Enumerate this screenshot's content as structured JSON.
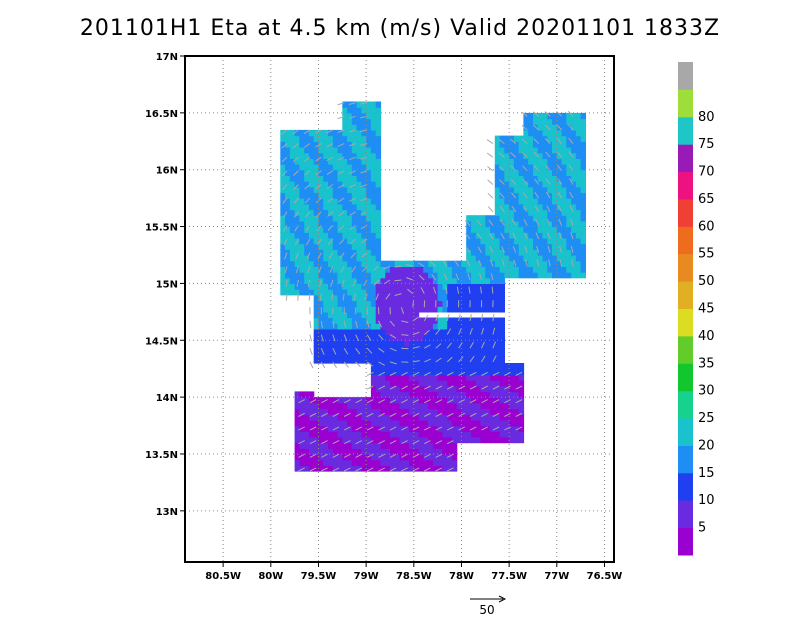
{
  "chart_data": {
    "type": "heatmap",
    "title": "201101H1 Eta at 4.5 km (m/s) Valid 20201101 1833Z",
    "x_ticks": [
      "80.5W",
      "80W",
      "79.5W",
      "79W",
      "78.5W",
      "78W",
      "77.5W",
      "77W",
      "76.5W"
    ],
    "y_ticks": [
      "13N",
      "13.5N",
      "14N",
      "14.5N",
      "15N",
      "15.5N",
      "16N",
      "16.5N",
      "17N"
    ],
    "xlim": [
      -80.9,
      -76.4
    ],
    "ylim": [
      12.55,
      17.0
    ],
    "grid": true,
    "colorbar": {
      "labels": [
        "5",
        "10",
        "15",
        "20",
        "25",
        "30",
        "35",
        "40",
        "45",
        "50",
        "55",
        "60",
        "65",
        "70",
        "75",
        "80"
      ],
      "colors": [
        "#9a00d0",
        "#6a2ae0",
        "#1f3ff0",
        "#1e8ef5",
        "#19c2cc",
        "#17d28c",
        "#11c72d",
        "#61cc2a",
        "#dcdc22",
        "#e0b022",
        "#e98a20",
        "#ef6b1d",
        "#f04035",
        "#ee1280",
        "#9a1ab8",
        "#1ec6c8",
        "#9fde3a",
        "#a8a8a8"
      ]
    },
    "reference_vector": {
      "label": "50"
    }
  }
}
